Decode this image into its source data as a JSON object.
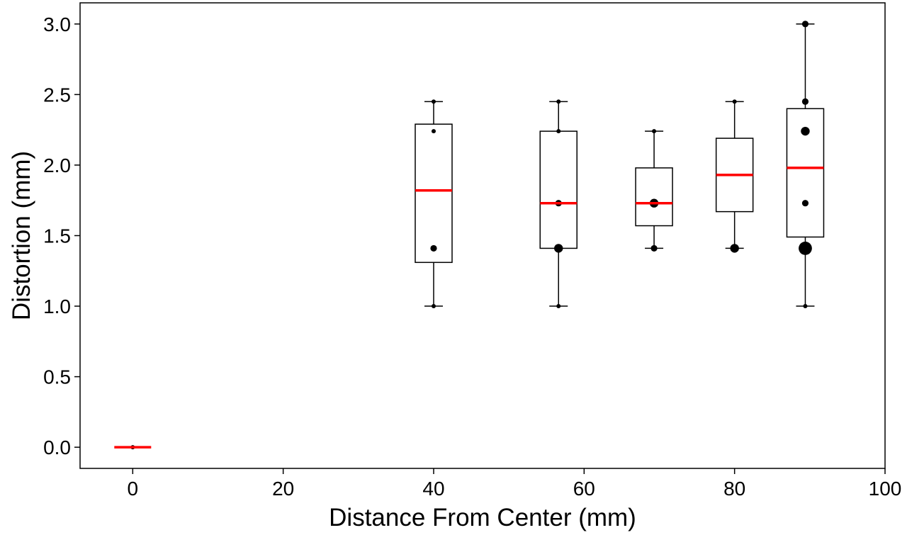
{
  "chart_data": {
    "type": "box",
    "title": "",
    "xlabel": "Distance From Center (mm)",
    "ylabel": "Distortion (mm)",
    "xlim": [
      -7,
      100
    ],
    "ylim": [
      -0.15,
      3.15
    ],
    "xticks": [
      0,
      20,
      40,
      60,
      80,
      100
    ],
    "yticks": [
      0.0,
      0.5,
      1.0,
      1.5,
      2.0,
      2.5,
      3.0
    ],
    "xtick_labels": [
      "0",
      "20",
      "40",
      "60",
      "80",
      "100"
    ],
    "ytick_labels": [
      "0.0",
      "0.5",
      "1.0",
      "1.5",
      "2.0",
      "2.5",
      "3.0"
    ],
    "grid": false,
    "colors": {
      "box": "#000000",
      "median": "#ff0000",
      "point": "#000000"
    },
    "boxes": [
      {
        "x": 0,
        "q1": 0.0,
        "median": 0.0,
        "q3": 0.0,
        "whisker_low": 0.0,
        "whisker_high": 0.0,
        "points": [
          {
            "y": 0.0,
            "count": 1
          }
        ]
      },
      {
        "x": 40,
        "q1": 1.31,
        "median": 1.82,
        "q3": 2.29,
        "whisker_low": 1.0,
        "whisker_high": 2.45,
        "points": [
          {
            "y": 1.0,
            "count": 1
          },
          {
            "y": 1.41,
            "count": 2
          },
          {
            "y": 2.24,
            "count": 1
          },
          {
            "y": 2.45,
            "count": 1
          }
        ]
      },
      {
        "x": 56.6,
        "q1": 1.41,
        "median": 1.73,
        "q3": 2.24,
        "whisker_low": 1.0,
        "whisker_high": 2.45,
        "points": [
          {
            "y": 1.0,
            "count": 1
          },
          {
            "y": 1.41,
            "count": 3
          },
          {
            "y": 1.73,
            "count": 2
          },
          {
            "y": 2.24,
            "count": 1
          },
          {
            "y": 2.45,
            "count": 1
          }
        ]
      },
      {
        "x": 69.3,
        "q1": 1.57,
        "median": 1.73,
        "q3": 1.98,
        "whisker_low": 1.41,
        "whisker_high": 2.24,
        "points": [
          {
            "y": 1.41,
            "count": 2
          },
          {
            "y": 1.73,
            "count": 3
          },
          {
            "y": 2.24,
            "count": 1
          }
        ]
      },
      {
        "x": 80,
        "q1": 1.67,
        "median": 1.93,
        "q3": 2.19,
        "whisker_low": 1.41,
        "whisker_high": 2.45,
        "points": [
          {
            "y": 1.41,
            "count": 3
          },
          {
            "y": 2.45,
            "count": 1
          }
        ]
      },
      {
        "x": 89.4,
        "q1": 1.49,
        "median": 1.98,
        "q3": 2.4,
        "whisker_low": 1.0,
        "whisker_high": 3.0,
        "points": [
          {
            "y": 1.0,
            "count": 1
          },
          {
            "y": 1.41,
            "count": 5
          },
          {
            "y": 1.73,
            "count": 2
          },
          {
            "y": 2.24,
            "count": 3
          },
          {
            "y": 2.45,
            "count": 2
          },
          {
            "y": 3.0,
            "count": 2
          }
        ]
      }
    ]
  }
}
